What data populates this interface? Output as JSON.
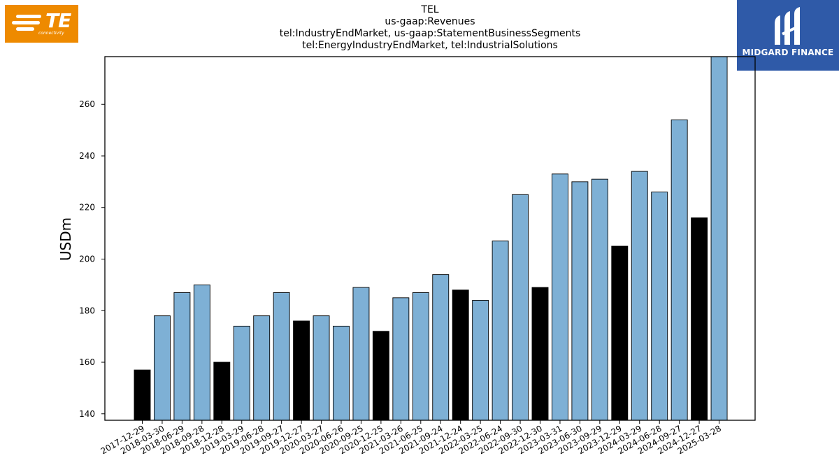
{
  "branding": {
    "left_logo_text": "TE",
    "left_logo_subtext": "connectivity",
    "right_logo_text": "MIDGARD FINANCE",
    "left_logo_color": "#ee8a00",
    "right_logo_color": "#2f5aa8"
  },
  "chart_data": {
    "type": "bar",
    "title_lines": [
      "TEL",
      "us-gaap:Revenues",
      "tel:IndustryEndMarket, us-gaap:StatementBusinessSegments",
      "tel:EnergyIndustryEndMarket, tel:IndustrialSolutions"
    ],
    "xlabel": "",
    "ylabel": "USDm",
    "ylim": [
      137.5,
      278.5
    ],
    "yticks": [
      140,
      160,
      180,
      200,
      220,
      240,
      260
    ],
    "grid": false,
    "colors": {
      "quarter": "#7eb0d5",
      "q4": "#000000"
    },
    "categories": [
      "2017-12-29",
      "2018-03-30",
      "2018-06-29",
      "2018-09-28",
      "2018-12-28",
      "2019-03-29",
      "2019-06-28",
      "2019-09-27",
      "2019-12-27",
      "2020-03-27",
      "2020-06-26",
      "2020-09-25",
      "2020-12-25",
      "2021-03-26",
      "2021-06-25",
      "2021-09-24",
      "2021-12-24",
      "2022-03-25",
      "2022-06-24",
      "2022-09-30",
      "2022-12-30",
      "2023-03-31",
      "2023-06-30",
      "2023-09-29",
      "2023-12-29",
      "2024-03-29",
      "2024-06-28",
      "2024-09-27",
      "2024-12-27",
      "2025-03-28"
    ],
    "values": [
      157,
      178,
      187,
      190,
      160,
      174,
      178,
      187,
      176,
      178,
      174,
      189,
      172,
      185,
      187,
      194,
      188,
      184,
      207,
      225,
      189,
      233,
      230,
      231,
      205,
      234,
      226,
      254,
      216,
      279
    ],
    "highlight": [
      true,
      false,
      false,
      false,
      true,
      false,
      false,
      false,
      true,
      false,
      false,
      false,
      true,
      false,
      false,
      false,
      true,
      false,
      false,
      false,
      true,
      false,
      false,
      false,
      true,
      false,
      false,
      false,
      true,
      false
    ]
  }
}
